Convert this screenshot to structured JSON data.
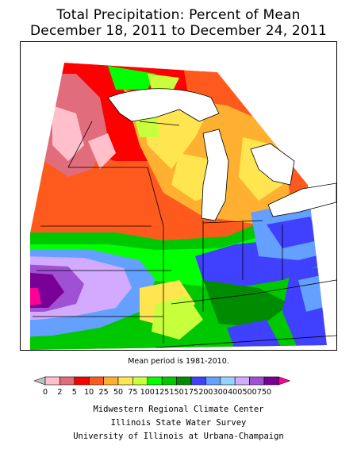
{
  "title_line1": "Total Precipitation: Percent of Mean",
  "title_line2": "December 18, 2011 to December 24, 2011",
  "mean_note": "Mean period is 1981-2010.",
  "legend": {
    "labels": [
      "0",
      "2",
      "5",
      "10",
      "25",
      "50",
      "75",
      "100",
      "125",
      "150",
      "175",
      "200",
      "300",
      "400",
      "500",
      "750"
    ],
    "colors": [
      "#c0c0c0",
      "#ffc0cb",
      "#e06c7c",
      "#ff0000",
      "#ff5a1e",
      "#ffb030",
      "#ffe650",
      "#c8ff3c",
      "#00ff00",
      "#00c800",
      "#008c00",
      "#4040ff",
      "#64a0ff",
      "#96d2ff",
      "#d2aaff",
      "#a050d2",
      "#780096",
      "#ff0096"
    ]
  },
  "credits": [
    "Midwestern Regional Climate Center",
    "Illinois State Water Survey",
    "University of Illinois at Urbana-Champaign"
  ]
}
